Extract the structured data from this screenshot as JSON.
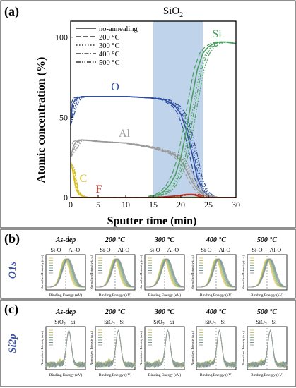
{
  "panel_a": {
    "label": "(a)",
    "band_label": "SiO",
    "band_label_sub": "2",
    "legend": [
      "no-annealing",
      "200 °C",
      "300 °C",
      "400 °C",
      "500 °C"
    ],
    "element_labels": {
      "O": "O",
      "Al": "Al",
      "Si": "Si",
      "C": "C",
      "F": "F"
    },
    "xlabel": "Sputter time (min)",
    "ylabel": "Atomic concentration (%)"
  },
  "panel_b": {
    "label": "(b)",
    "row_label": "O1s",
    "peak_labels": [
      "Si-O",
      "Al-O"
    ]
  },
  "panel_c": {
    "label": "(c)",
    "row_label": "Si2p",
    "peak_labels": [
      "SiO",
      "Si"
    ],
    "peak_label_sub": "2"
  },
  "small_axis": {
    "ylabel": "Normalized Intensity (a.u.)",
    "xlabel": "Binding Energy (eV)"
  },
  "conditions": [
    "As-dep",
    "200 °C",
    "300 °C",
    "400 °C",
    "500 °C"
  ],
  "chart_data": [
    {
      "type": "line",
      "x_label": "Sputter time (min)",
      "y_label": "Atomic concentration (%)",
      "xlim": [
        0,
        30
      ],
      "ylim": [
        0,
        110
      ],
      "x_ticks": [
        0,
        5,
        10,
        15,
        20,
        25,
        30
      ],
      "y_ticks": [
        0,
        50,
        100
      ],
      "shaded_region": [
        15,
        24
      ],
      "grid": false,
      "legend_position": "top-left",
      "series_styles": [
        "solid",
        "dashed",
        "dotted",
        "dashdot",
        "dashdotdot"
      ],
      "elements": [
        {
          "name": "O",
          "color": "#2e4ea0",
          "x": [
            0,
            0.3,
            1,
            2,
            5,
            10,
            15,
            17,
            18,
            19,
            20,
            21,
            22,
            23,
            24,
            25,
            26,
            30
          ],
          "y": [
            45,
            58,
            62,
            63,
            63,
            63,
            62,
            61,
            59,
            57,
            52,
            42,
            28,
            12,
            4,
            1,
            0,
            0
          ],
          "shifts": [
            0,
            -0.5,
            0.6,
            0.3,
            0.9
          ]
        },
        {
          "name": "Al",
          "color": "#9a9a9a",
          "x": [
            0,
            0.5,
            1,
            2,
            5,
            10,
            15,
            17,
            18,
            19,
            20,
            21,
            22,
            23,
            24,
            26,
            30
          ],
          "y": [
            25,
            32,
            35,
            36,
            35,
            34,
            31,
            29,
            28,
            26,
            23,
            17,
            10,
            5,
            2,
            0,
            0
          ],
          "shifts": [
            0,
            -0.5,
            0.6,
            0.3,
            0.9
          ]
        },
        {
          "name": "Si",
          "color": "#4aa060",
          "x": [
            0,
            14,
            15,
            16,
            17,
            18,
            19,
            20,
            21,
            22,
            23,
            24,
            25,
            26,
            27,
            28,
            30
          ],
          "y": [
            0,
            0,
            1,
            2,
            4,
            8,
            14,
            25,
            42,
            62,
            80,
            90,
            94,
            96,
            97,
            97,
            96
          ],
          "shifts": [
            0,
            -0.6,
            0.5,
            0.8,
            1.2
          ]
        },
        {
          "name": "C",
          "color": "#d4c020",
          "x": [
            0,
            0.3,
            0.7,
            1,
            1.5,
            2,
            3,
            30
          ],
          "y": [
            22,
            18,
            10,
            5,
            2,
            1,
            0,
            0
          ],
          "shifts": [
            0,
            0.1,
            0.2,
            0.3,
            0.4
          ]
        },
        {
          "name": "F",
          "color": "#c03020",
          "x": [
            0,
            15,
            17,
            19,
            21,
            22,
            23,
            24,
            30
          ],
          "y": [
            0,
            0,
            0.5,
            1,
            2,
            2,
            1,
            0,
            0
          ],
          "shifts": [
            0,
            0.3,
            0.6,
            0.9,
            1.2
          ]
        }
      ]
    }
  ]
}
